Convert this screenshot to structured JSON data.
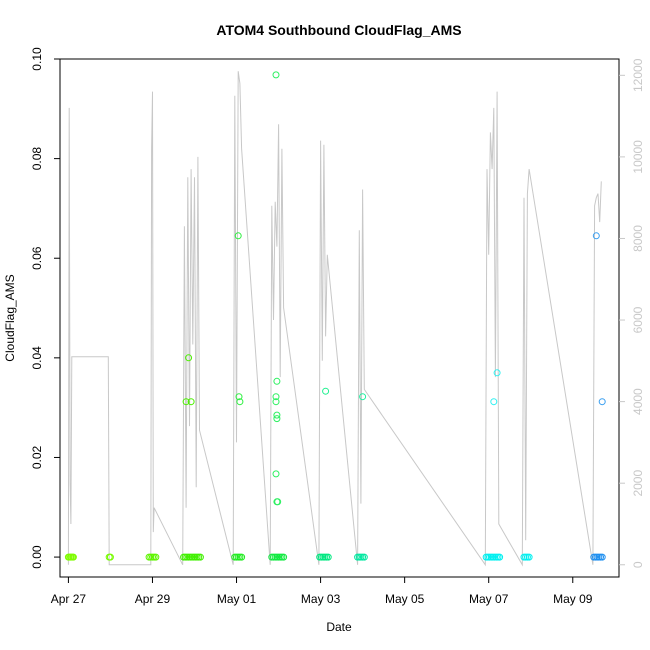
{
  "chart_data": {
    "type": "scatter",
    "title": "ATOM4 Southbound CloudFlag_AMS",
    "xlabel": "Date",
    "ylabel": "CloudFlag_AMS",
    "xlim": [
      -0.2,
      13.1
    ],
    "ylim": [
      -0.004,
      0.1
    ],
    "yticks": [
      0.0,
      0.02,
      0.04,
      0.06,
      0.08,
      0.1
    ],
    "ytick_labels": [
      "0.00",
      "0.02",
      "0.04",
      "0.06",
      "0.08",
      "0.10"
    ],
    "xticks": [
      {
        "day": 0,
        "label": "Apr 27"
      },
      {
        "day": 2,
        "label": "Apr 29"
      },
      {
        "day": 4,
        "label": "May 01"
      },
      {
        "day": 6,
        "label": "May 03"
      },
      {
        "day": 8,
        "label": "May 05"
      },
      {
        "day": 10,
        "label": "May 07"
      },
      {
        "day": 12,
        "label": "May 09"
      }
    ],
    "secondary_axis": {
      "ylim": [
        -300,
        12400
      ],
      "ticks": [
        0,
        2000,
        4000,
        6000,
        8000,
        10000,
        12000
      ],
      "tick_labels": [
        "0",
        "2000",
        "4000",
        "6000",
        "8000",
        "10000",
        "12000"
      ],
      "color": "#c8c8c8"
    },
    "points": [
      {
        "x": 0.0,
        "y": 0.0,
        "color": "#7ffc00"
      },
      {
        "x": 0.02,
        "y": 0.0,
        "color": "#7ffc00"
      },
      {
        "x": 0.05,
        "y": 0.0,
        "color": "#7ffc00"
      },
      {
        "x": 0.07,
        "y": 0.0,
        "color": "#7ffc00"
      },
      {
        "x": 0.1,
        "y": 0.0,
        "color": "#7ffc00"
      },
      {
        "x": 0.12,
        "y": 0.0,
        "color": "#7ffc00"
      },
      {
        "x": 0.97,
        "y": 0.0,
        "color": "#77fc00"
      },
      {
        "x": 1.0,
        "y": 0.0,
        "color": "#77fc00"
      },
      {
        "x": 1.92,
        "y": 0.0,
        "color": "#5ef500"
      },
      {
        "x": 1.96,
        "y": 0.0,
        "color": "#5ef500"
      },
      {
        "x": 2.0,
        "y": 0.0,
        "color": "#5ef500"
      },
      {
        "x": 2.04,
        "y": 0.0,
        "color": "#5ef500"
      },
      {
        "x": 2.08,
        "y": 0.0,
        "color": "#5ef500"
      },
      {
        "x": 2.74,
        "y": 0.0,
        "color": "#40f000"
      },
      {
        "x": 2.78,
        "y": 0.0,
        "color": "#40f000"
      },
      {
        "x": 2.82,
        "y": 0.0,
        "color": "#40f000"
      },
      {
        "x": 2.86,
        "y": 0.0,
        "color": "#40f000"
      },
      {
        "x": 2.9,
        "y": 0.0,
        "color": "#40f000"
      },
      {
        "x": 2.94,
        "y": 0.0,
        "color": "#40f000"
      },
      {
        "x": 2.98,
        "y": 0.0,
        "color": "#40f000"
      },
      {
        "x": 3.02,
        "y": 0.0,
        "color": "#40f000"
      },
      {
        "x": 3.06,
        "y": 0.0,
        "color": "#40f000"
      },
      {
        "x": 3.1,
        "y": 0.0,
        "color": "#40f000"
      },
      {
        "x": 3.14,
        "y": 0.0,
        "color": "#40f000"
      },
      {
        "x": 2.8,
        "y": 0.0312,
        "color": "#4cf000"
      },
      {
        "x": 2.86,
        "y": 0.04,
        "color": "#4cf000"
      },
      {
        "x": 2.92,
        "y": 0.0312,
        "color": "#4cf000"
      },
      {
        "x": 3.96,
        "y": 0.0,
        "color": "#20ec20"
      },
      {
        "x": 4.0,
        "y": 0.0,
        "color": "#20ec20"
      },
      {
        "x": 4.04,
        "y": 0.0,
        "color": "#20ec20"
      },
      {
        "x": 4.08,
        "y": 0.0,
        "color": "#20ec20"
      },
      {
        "x": 4.12,
        "y": 0.0,
        "color": "#20ec20"
      },
      {
        "x": 4.04,
        "y": 0.0645,
        "color": "#2ef040"
      },
      {
        "x": 4.06,
        "y": 0.0322,
        "color": "#2ef040"
      },
      {
        "x": 4.08,
        "y": 0.0312,
        "color": "#2ef040"
      },
      {
        "x": 4.84,
        "y": 0.0,
        "color": "#10ea40"
      },
      {
        "x": 4.88,
        "y": 0.0,
        "color": "#10ea40"
      },
      {
        "x": 4.92,
        "y": 0.0,
        "color": "#10ea40"
      },
      {
        "x": 4.96,
        "y": 0.0,
        "color": "#10ea40"
      },
      {
        "x": 5.0,
        "y": 0.0,
        "color": "#10ea40"
      },
      {
        "x": 5.04,
        "y": 0.0,
        "color": "#10ea40"
      },
      {
        "x": 5.08,
        "y": 0.0,
        "color": "#10ea40"
      },
      {
        "x": 5.12,
        "y": 0.0,
        "color": "#10ea40"
      },
      {
        "x": 4.94,
        "y": 0.0968,
        "color": "#2cf060"
      },
      {
        "x": 4.94,
        "y": 0.0322,
        "color": "#2cf060"
      },
      {
        "x": 4.94,
        "y": 0.0312,
        "color": "#2cf060"
      },
      {
        "x": 4.96,
        "y": 0.0353,
        "color": "#2cf060"
      },
      {
        "x": 4.96,
        "y": 0.0285,
        "color": "#2cf060"
      },
      {
        "x": 4.96,
        "y": 0.0278,
        "color": "#2cf060"
      },
      {
        "x": 4.94,
        "y": 0.0167,
        "color": "#2cf060"
      },
      {
        "x": 4.96,
        "y": 0.0111,
        "color": "#2cf060"
      },
      {
        "x": 4.98,
        "y": 0.0111,
        "color": "#2cf060"
      },
      {
        "x": 5.98,
        "y": 0.0,
        "color": "#00e880"
      },
      {
        "x": 6.02,
        "y": 0.0,
        "color": "#00e880"
      },
      {
        "x": 6.06,
        "y": 0.0,
        "color": "#00e880"
      },
      {
        "x": 6.1,
        "y": 0.0,
        "color": "#00e880"
      },
      {
        "x": 6.14,
        "y": 0.0,
        "color": "#00e880"
      },
      {
        "x": 6.18,
        "y": 0.0,
        "color": "#00e880"
      },
      {
        "x": 6.12,
        "y": 0.0333,
        "color": "#20f090"
      },
      {
        "x": 6.88,
        "y": 0.0,
        "color": "#00e8a0"
      },
      {
        "x": 6.92,
        "y": 0.0,
        "color": "#00e8a0"
      },
      {
        "x": 6.96,
        "y": 0.0,
        "color": "#00e8a0"
      },
      {
        "x": 7.0,
        "y": 0.0,
        "color": "#00e8a0"
      },
      {
        "x": 7.04,
        "y": 0.0,
        "color": "#00e8a0"
      },
      {
        "x": 7.0,
        "y": 0.0322,
        "color": "#20f0a0"
      },
      {
        "x": 9.94,
        "y": 0.0,
        "color": "#00f0f0"
      },
      {
        "x": 9.98,
        "y": 0.0,
        "color": "#00f0f0"
      },
      {
        "x": 10.02,
        "y": 0.0,
        "color": "#00f0f0"
      },
      {
        "x": 10.06,
        "y": 0.0,
        "color": "#00f0f0"
      },
      {
        "x": 10.1,
        "y": 0.0,
        "color": "#00f0f0"
      },
      {
        "x": 10.14,
        "y": 0.0,
        "color": "#00f0f0"
      },
      {
        "x": 10.18,
        "y": 0.0,
        "color": "#00f0f0"
      },
      {
        "x": 10.22,
        "y": 0.0,
        "color": "#00f0f0"
      },
      {
        "x": 10.26,
        "y": 0.0,
        "color": "#00f0f0"
      },
      {
        "x": 10.12,
        "y": 0.0312,
        "color": "#30f0f0"
      },
      {
        "x": 10.2,
        "y": 0.037,
        "color": "#30f0f0"
      },
      {
        "x": 10.84,
        "y": 0.0,
        "color": "#00f0f0"
      },
      {
        "x": 10.88,
        "y": 0.0,
        "color": "#00f0f0"
      },
      {
        "x": 10.92,
        "y": 0.0,
        "color": "#00f0f0"
      },
      {
        "x": 10.96,
        "y": 0.0,
        "color": "#00f0f0"
      },
      {
        "x": 12.5,
        "y": 0.0,
        "color": "#1e8ff0"
      },
      {
        "x": 12.54,
        "y": 0.0,
        "color": "#1e8ff0"
      },
      {
        "x": 12.58,
        "y": 0.0,
        "color": "#1e8ff0"
      },
      {
        "x": 12.62,
        "y": 0.0,
        "color": "#1e8ff0"
      },
      {
        "x": 12.66,
        "y": 0.0,
        "color": "#1e8ff0"
      },
      {
        "x": 12.7,
        "y": 0.0,
        "color": "#1e8ff0"
      },
      {
        "x": 12.56,
        "y": 0.0645,
        "color": "#3a9ff0"
      },
      {
        "x": 12.7,
        "y": 0.0312,
        "color": "#3a9ff0"
      }
    ],
    "secondary_series": {
      "name": "altitude",
      "color": "#c8c8c8",
      "x": [
        0.0,
        0.02,
        0.04,
        0.06,
        0.08,
        0.1,
        0.95,
        0.97,
        0.99,
        1.96,
        1.98,
        2.0,
        2.02,
        2.04,
        2.72,
        2.76,
        2.8,
        2.84,
        2.88,
        2.92,
        2.96,
        3.0,
        3.04,
        3.08,
        3.12,
        3.92,
        3.96,
        4.0,
        4.04,
        4.08,
        4.12,
        4.8,
        4.84,
        4.88,
        4.92,
        4.96,
        5.0,
        5.04,
        5.08,
        5.12,
        5.96,
        6.0,
        6.04,
        6.08,
        6.12,
        6.16,
        6.88,
        6.92,
        6.96,
        7.0,
        7.04,
        9.92,
        9.96,
        10.0,
        10.04,
        10.08,
        10.12,
        10.16,
        10.2,
        10.24,
        10.8,
        10.84,
        10.88,
        10.92,
        10.96,
        12.48,
        12.52,
        12.56,
        12.6,
        12.64,
        12.68
      ],
      "y": [
        0,
        11200,
        2000,
        1000,
        5100,
        5100,
        5100,
        0,
        0,
        0,
        10200,
        11600,
        800,
        1400,
        0,
        8300,
        1400,
        9500,
        3400,
        9700,
        5400,
        9500,
        1900,
        10000,
        3300,
        0,
        11500,
        3000,
        12100,
        11800,
        10200,
        0,
        8800,
        6000,
        8900,
        7800,
        10800,
        4600,
        10200,
        6300,
        0,
        10400,
        5000,
        10300,
        5600,
        7600,
        0,
        8200,
        1500,
        9200,
        4300,
        0,
        9700,
        7600,
        10600,
        9700,
        11200,
        4600,
        11600,
        1000,
        0,
        9000,
        600,
        9100,
        9700,
        0,
        8800,
        9000,
        9100,
        8400,
        9400
      ]
    }
  }
}
